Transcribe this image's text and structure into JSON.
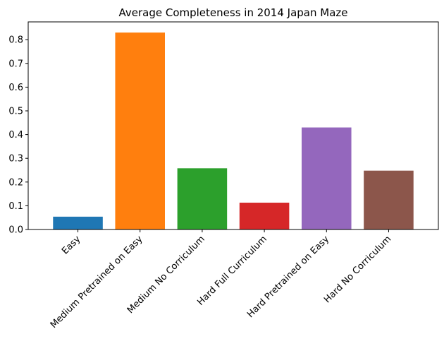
{
  "chart_data": {
    "type": "bar",
    "title": "Average Completeness in 2014 Japan Maze",
    "xlabel": "",
    "ylabel": "",
    "categories": [
      "Easy",
      "Medium Pretrained on Easy",
      "Medium No Corriculum",
      "Hard Full Curriculum",
      "Hard Pretrained on Easy",
      "Hard No Corriculum"
    ],
    "values": [
      0.054,
      0.83,
      0.258,
      0.113,
      0.43,
      0.248
    ],
    "colors": [
      "#1f77b4",
      "#ff7f0e",
      "#2ca02c",
      "#d62728",
      "#9467bd",
      "#8c564b"
    ],
    "ylim": [
      0,
      0.875
    ],
    "yticks": [
      0.0,
      0.1,
      0.2,
      0.3,
      0.4,
      0.5,
      0.6,
      0.7,
      0.8
    ],
    "ytick_labels": [
      "0.0",
      "0.1",
      "0.2",
      "0.3",
      "0.4",
      "0.5",
      "0.6",
      "0.7",
      "0.8"
    ],
    "grid": false,
    "legend": "none"
  }
}
